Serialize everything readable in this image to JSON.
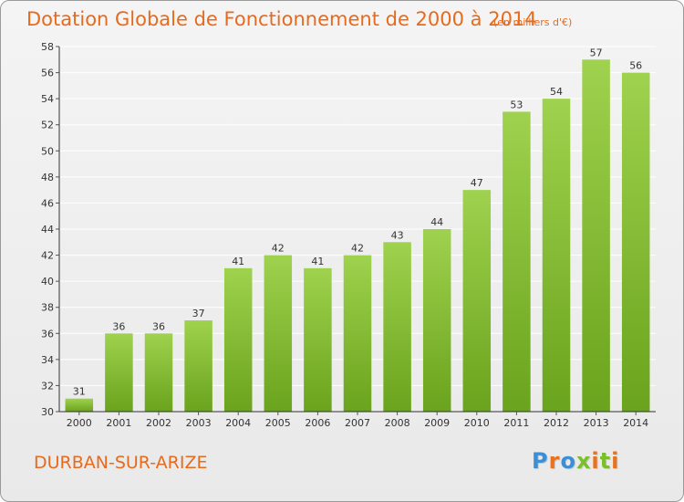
{
  "chart": {
    "title": "Dotation Globale de Fonctionnement de 2000 à 2014",
    "subtitle": "(en milliers d'€)",
    "commune": "DURBAN-SUR-ARIZE",
    "logo_text": "Proxiti"
  },
  "colors": {
    "bar_top": "#9fd24e",
    "bar_bottom": "#6aa31d",
    "title": "#e86a1c",
    "grid": "#ffffff",
    "logo_letters": [
      "#3a8fd6",
      "#e8731c",
      "#3a8fd6",
      "#7bbf2a",
      "#e8731c",
      "#7bbf2a",
      "#e8731c"
    ]
  },
  "chart_data": {
    "type": "bar",
    "title": "Dotation Globale de Fonctionnement de 2000 à 2014",
    "subtitle": "(en milliers d'€)",
    "categories": [
      "2000",
      "2001",
      "2002",
      "2003",
      "2004",
      "2005",
      "2006",
      "2007",
      "2008",
      "2009",
      "2010",
      "2011",
      "2012",
      "2013",
      "2014"
    ],
    "values": [
      31,
      36,
      36,
      37,
      41,
      42,
      41,
      42,
      43,
      44,
      47,
      53,
      54,
      57,
      56
    ],
    "xlabel": "",
    "ylabel": "",
    "ylim": [
      30,
      58
    ],
    "yticks": [
      30,
      32,
      34,
      36,
      38,
      40,
      42,
      44,
      46,
      48,
      50,
      52,
      54,
      56,
      58
    ],
    "grid": true,
    "data_labels": true
  }
}
